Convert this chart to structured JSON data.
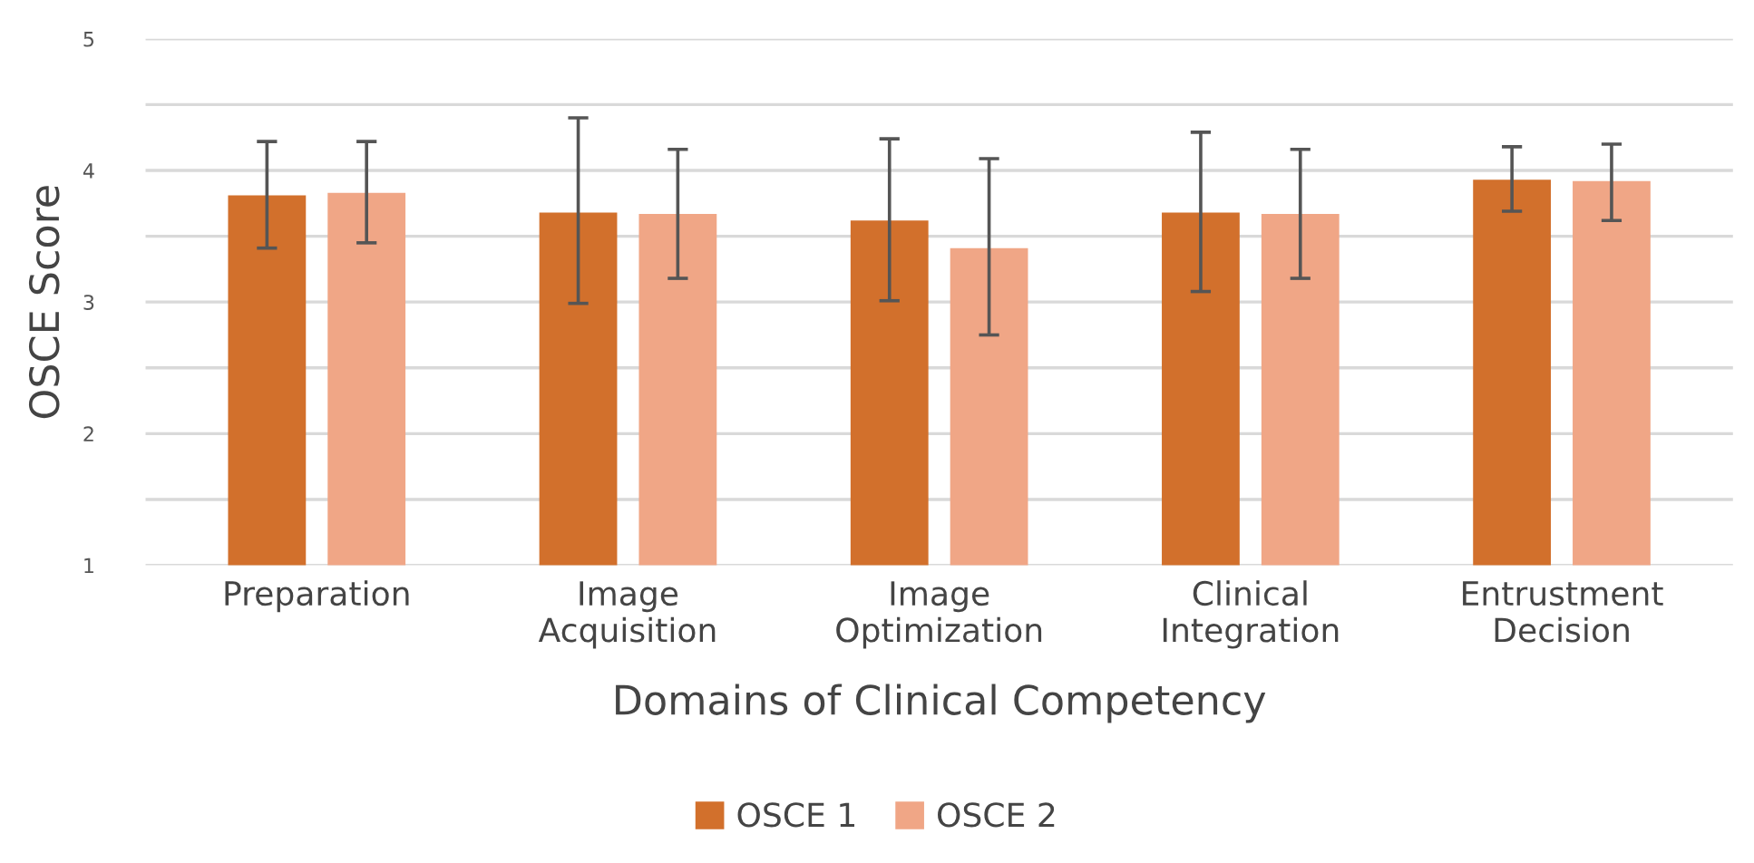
{
  "chart_data": {
    "type": "bar",
    "xlabel": "Domains of Clinical Competency",
    "ylabel": "OSCE Score",
    "categories": [
      "Preparation",
      "Image\nAcquisition",
      "Image\nOptimization",
      "Clinical\nIntegration",
      "Entrustment\nDecision"
    ],
    "series": [
      {
        "name": "OSCE 1",
        "color": "#d2702c",
        "values": [
          3.81,
          3.68,
          3.62,
          3.68,
          3.93
        ],
        "errors": [
          [
            3.41,
            4.22
          ],
          [
            2.99,
            4.4
          ],
          [
            3.01,
            4.24
          ],
          [
            3.08,
            4.29
          ],
          [
            3.69,
            4.18
          ]
        ]
      },
      {
        "name": "OSCE 2",
        "color": "#f0a686",
        "values": [
          3.83,
          3.67,
          3.41,
          3.67,
          3.92
        ],
        "errors": [
          [
            3.45,
            4.22
          ],
          [
            3.18,
            4.16
          ],
          [
            2.75,
            4.09
          ],
          [
            3.18,
            4.16
          ],
          [
            3.62,
            4.2
          ]
        ]
      }
    ],
    "ylim": [
      1,
      5
    ],
    "yticks": [
      1,
      {
        "value": 1.5,
        "label": null
      },
      2,
      {
        "value": 2.5,
        "label": null
      },
      3,
      {
        "value": 3.5,
        "label": null
      },
      4,
      {
        "value": 4.5,
        "label": null
      },
      5
    ],
    "grid": "y",
    "legend": "bottom"
  }
}
